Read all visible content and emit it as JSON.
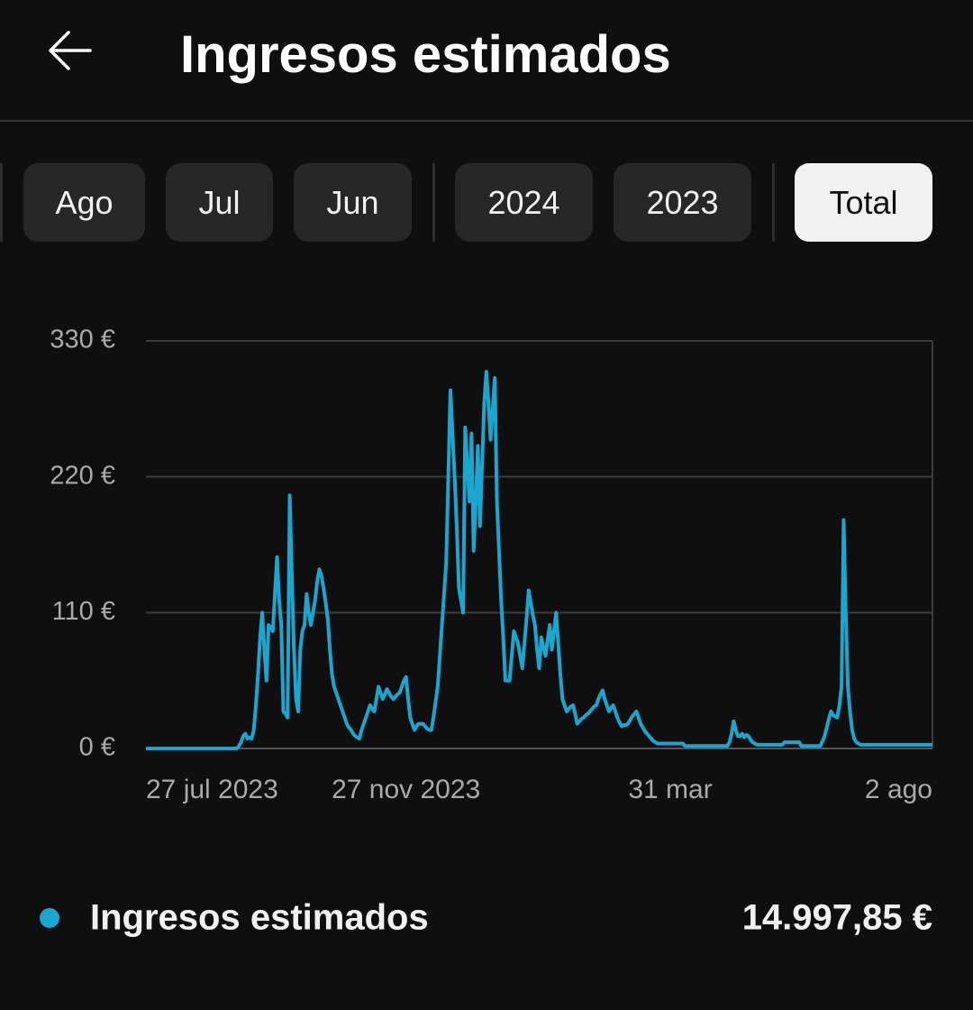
{
  "header": {
    "title": "Ingresos estimados"
  },
  "filters": [
    "Ago",
    "Jul",
    "Jun",
    "2024",
    "2023",
    "Total"
  ],
  "chart_data": {
    "type": "line",
    "categories": [
      "27 jul 2023",
      null,
      null,
      null,
      null,
      null,
      null,
      null,
      null,
      null,
      null,
      null,
      null,
      null,
      null,
      null,
      null,
      null,
      null,
      null,
      null,
      null,
      null,
      null,
      null,
      null,
      null,
      null,
      null,
      null,
      null,
      null,
      null,
      null,
      null,
      null,
      null,
      null,
      null,
      null,
      null,
      null,
      null,
      null,
      null,
      null,
      null,
      null,
      null,
      null,
      null,
      null,
      null,
      null,
      null,
      null,
      null,
      null,
      null,
      null,
      null,
      null,
      null,
      null,
      null,
      null,
      null,
      null,
      null,
      null,
      null,
      null,
      null,
      null,
      null,
      null,
      null,
      null,
      null,
      null,
      null,
      null,
      null,
      null,
      null,
      null,
      null,
      null,
      null,
      null,
      null,
      null,
      null,
      null,
      null,
      null,
      null,
      null,
      null,
      null,
      null,
      null,
      null,
      null,
      null,
      null,
      null,
      null,
      null,
      null,
      null,
      null,
      null,
      null,
      null,
      null,
      null,
      null,
      null,
      null,
      null,
      null,
      null,
      "27 nov 2023",
      null,
      null,
      null,
      null,
      null,
      null,
      null,
      null,
      null,
      null,
      null,
      null,
      null,
      null,
      null,
      null,
      null,
      null,
      null,
      null,
      null,
      null,
      null,
      null,
      null,
      null,
      null,
      null,
      null,
      null,
      null,
      null,
      null,
      null,
      null,
      null,
      null,
      null,
      null,
      null,
      null,
      null,
      null,
      null,
      null,
      null,
      null,
      null,
      null,
      null,
      null,
      null,
      null,
      null,
      null,
      null,
      null,
      null,
      null,
      null,
      null,
      null,
      null,
      null,
      null,
      null,
      null,
      null,
      null,
      null,
      null,
      null,
      null,
      null,
      null,
      null,
      null,
      null,
      null,
      null,
      null,
      null,
      null,
      null,
      null,
      null,
      null,
      null,
      null,
      null,
      null,
      null,
      null,
      null,
      null,
      null,
      null,
      null,
      null,
      null,
      null,
      null,
      null,
      null,
      null,
      null,
      null,
      null,
      null,
      null,
      null,
      null,
      null,
      null,
      null,
      null,
      null,
      null,
      null,
      null,
      null,
      null,
      null,
      null,
      "31 mar",
      null,
      null,
      null,
      null,
      null,
      null,
      null,
      null,
      null,
      null,
      null,
      null,
      null,
      null,
      null,
      null,
      null,
      null,
      null,
      null,
      null,
      null,
      null,
      null,
      null,
      null,
      null,
      null,
      null,
      null,
      null,
      null,
      null,
      null,
      null,
      null,
      null,
      null,
      null,
      null,
      null,
      null,
      null,
      null,
      null,
      null,
      null,
      null,
      null,
      null,
      null,
      null,
      null,
      null,
      null,
      null,
      null,
      null,
      null,
      null,
      null,
      null,
      null,
      null,
      null,
      null,
      null,
      null,
      null,
      null,
      null,
      null,
      null,
      null,
      null,
      null,
      null,
      null,
      null,
      null,
      null,
      null,
      null,
      null,
      null,
      null,
      null,
      null,
      null,
      null,
      null,
      null,
      null,
      null,
      null,
      null,
      null,
      null,
      null,
      null,
      null,
      null,
      null,
      null,
      null,
      null,
      null,
      null,
      null,
      null,
      null,
      null,
      null,
      null,
      null,
      null,
      null,
      null,
      null,
      null,
      null,
      null,
      null,
      "2 ago"
    ],
    "series": [
      {
        "name": "Ingresos estimados",
        "color": "#1ba6d0",
        "values": [
          0,
          0,
          0,
          0,
          0,
          0,
          0,
          0,
          0,
          0,
          0,
          0,
          0,
          0,
          0,
          0,
          0,
          0,
          0,
          0,
          0,
          0,
          0,
          0,
          0,
          0,
          0,
          0,
          0,
          0,
          0,
          0,
          0,
          0,
          0,
          0,
          0,
          0,
          0,
          0,
          0,
          0,
          0,
          0,
          2,
          5,
          10,
          12,
          8,
          9,
          8,
          15,
          35,
          60,
          90,
          110,
          80,
          55,
          100,
          98,
          95,
          125,
          155,
          120,
          100,
          30,
          28,
          25,
          205,
          140,
          80,
          40,
          30,
          80,
          95,
          100,
          125,
          110,
          100,
          110,
          120,
          135,
          145,
          140,
          130,
          118,
          105,
          80,
          60,
          50,
          45,
          40,
          35,
          30,
          25,
          20,
          17,
          15,
          12,
          10,
          9,
          8,
          15,
          20,
          25,
          30,
          35,
          32,
          30,
          40,
          50,
          45,
          40,
          44,
          48,
          45,
          42,
          40,
          42,
          44,
          45,
          50,
          55,
          58,
          40,
          25,
          20,
          15,
          18,
          20,
          20,
          20,
          18,
          16,
          15,
          15,
          25,
          38,
          50,
          75,
          100,
          125,
          150,
          220,
          290,
          255,
          220,
          180,
          130,
          120,
          110,
          260,
          230,
          200,
          255,
          160,
          200,
          245,
          180,
          230,
          280,
          305,
          280,
          250,
          275,
          300,
          200,
          160,
          120,
          90,
          55,
          55,
          55,
          75,
          95,
          90,
          85,
          75,
          65,
          85,
          105,
          128,
          118,
          108,
          100,
          80,
          65,
          90,
          82,
          75,
          88,
          100,
          80,
          95,
          110,
          85,
          60,
          40,
          35,
          30,
          32,
          34,
          35,
          28,
          20,
          22,
          24,
          25,
          27,
          28,
          30,
          32,
          34,
          35,
          40,
          44,
          47,
          40,
          35,
          30,
          33,
          35,
          30,
          25,
          21,
          18,
          19,
          19,
          20,
          23,
          26,
          28,
          30,
          25,
          20,
          17,
          14,
          12,
          10,
          8,
          6,
          5,
          4,
          4,
          4,
          4,
          4,
          4,
          4,
          4,
          4,
          4,
          4,
          4,
          4,
          2,
          2,
          2,
          2,
          2,
          2,
          2,
          2,
          2,
          2,
          2,
          2,
          2,
          2,
          2,
          2,
          2,
          2,
          2,
          2,
          2,
          5,
          12,
          22,
          15,
          10,
          10,
          12,
          9,
          11,
          10,
          7,
          5,
          4,
          3,
          3,
          3,
          3,
          3,
          3,
          3,
          3,
          3,
          3,
          3,
          3,
          3,
          5,
          5,
          5,
          5,
          5,
          5,
          5,
          5,
          2,
          2,
          2,
          2,
          2,
          2,
          2,
          2,
          2,
          2,
          6,
          10,
          17,
          24,
          30,
          27,
          26,
          25,
          35,
          50,
          185,
          110,
          50,
          30,
          15,
          8,
          5,
          4,
          3,
          3,
          3,
          3,
          3,
          3,
          3,
          3,
          3,
          3,
          3,
          3,
          3,
          3,
          3,
          3,
          3,
          3,
          3,
          3,
          3,
          3,
          3,
          3,
          3,
          3,
          3,
          3,
          3,
          3,
          3,
          3,
          3,
          3,
          3
        ]
      }
    ],
    "ylim": [
      0,
      330
    ],
    "yticks": [
      {
        "value": 0,
        "label": "0 €"
      },
      {
        "value": 110,
        "label": "110 €"
      },
      {
        "value": 220,
        "label": "220 €"
      },
      {
        "value": 330,
        "label": "330 €"
      }
    ],
    "grid": true,
    "total": "14.997,85 €"
  }
}
